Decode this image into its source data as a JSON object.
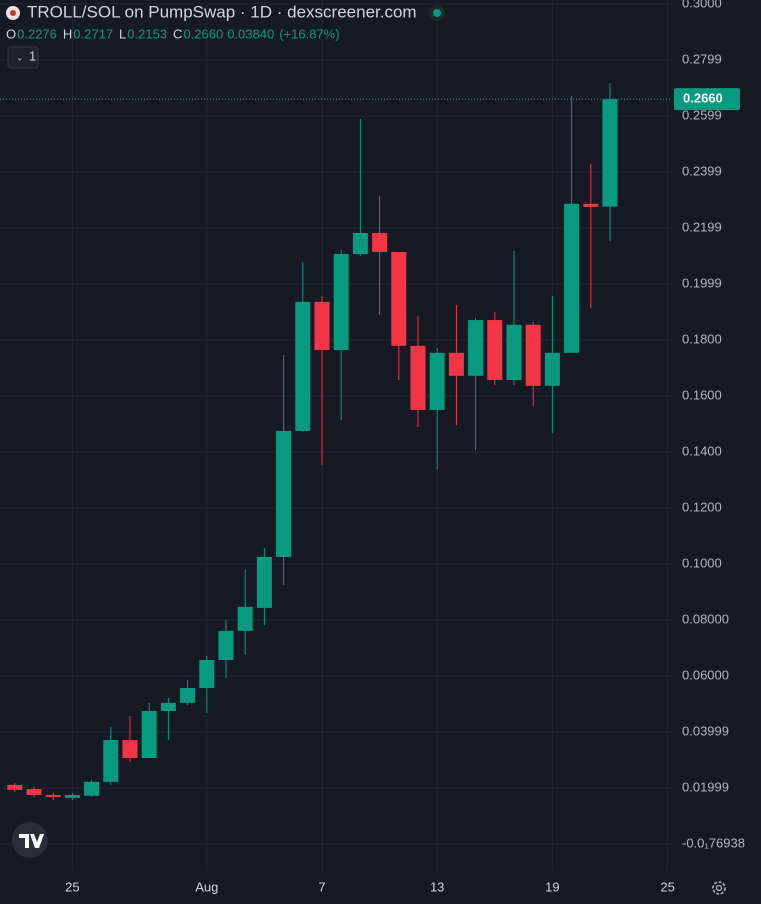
{
  "chart_data": {
    "type": "candlestick",
    "title": "TROLL/SOL on PumpSwap · 1D · dexscreener.com",
    "ohlc_legend": {
      "labels": [
        "O",
        "H",
        "L",
        "C"
      ],
      "values": [
        "0.2276",
        "0.2717",
        "0.2153",
        "0.2660"
      ],
      "change": "0.03840",
      "change_pct": "(+16.87%)"
    },
    "interval_button": "1",
    "categories": [
      null,
      null,
      null,
      "25",
      null,
      null,
      null,
      null,
      null,
      null,
      "Aug",
      null,
      null,
      null,
      null,
      null,
      "7",
      null,
      null,
      null,
      null,
      null,
      "13",
      null,
      null,
      null,
      null,
      null,
      "19",
      null,
      null,
      null,
      null,
      null,
      "25"
    ],
    "open": [
      0.0211,
      0.0196,
      0.0175,
      0.0164,
      0.0172,
      0.0222,
      0.0371,
      0.0307,
      0.0475,
      0.0504,
      0.0557,
      0.0657,
      0.0761,
      0.0843,
      0.1025,
      0.1475,
      0.1936,
      0.1764,
      0.2107,
      0.2182,
      0.2114,
      0.1779,
      0.155,
      0.1754,
      0.1672,
      0.1871,
      0.1657,
      0.1854,
      0.1636,
      0.1754,
      0.2286,
      0.2276,
      null,
      null,
      null
    ],
    "high": [
      0.0218,
      0.0204,
      0.0182,
      0.0182,
      0.0229,
      0.0418,
      0.0457,
      0.0504,
      0.0522,
      0.0586,
      0.0671,
      0.08,
      0.0979,
      0.1057,
      0.1746,
      0.2079,
      0.1957,
      0.2121,
      0.2589,
      0.2314,
      0.2114,
      0.1886,
      0.1771,
      0.1925,
      0.1879,
      0.19,
      0.2118,
      0.1864,
      0.1957,
      0.2672,
      0.2429,
      0.2717,
      null,
      null,
      null
    ],
    "low": [
      0.0186,
      0.0168,
      0.0157,
      0.0157,
      0.0168,
      0.0211,
      0.0293,
      0.0307,
      0.0371,
      0.0496,
      0.0468,
      0.0593,
      0.0675,
      0.0782,
      0.0925,
      0.1472,
      0.1354,
      0.1514,
      0.21,
      0.1889,
      0.1657,
      0.1489,
      0.1339,
      0.1496,
      0.1407,
      0.1639,
      0.1639,
      0.1564,
      0.1468,
      0.1754,
      0.1914,
      0.2153,
      null,
      null,
      null
    ],
    "close": [
      0.0193,
      0.0175,
      0.0168,
      0.0175,
      0.0222,
      0.0371,
      0.0307,
      0.0475,
      0.0504,
      0.0557,
      0.0657,
      0.0761,
      0.0847,
      0.1025,
      0.1475,
      0.1936,
      0.1764,
      0.2107,
      0.2182,
      0.2114,
      0.1779,
      0.155,
      0.1754,
      0.1672,
      0.1871,
      0.1657,
      0.1854,
      0.1636,
      0.1754,
      0.2286,
      0.2275,
      0.266,
      null,
      null,
      null
    ],
    "up_color": "#089981",
    "down_color": "#f23645",
    "ylim": [
      -0.0093,
      0.3014
    ],
    "yticks": [
      {
        "value": 0,
        "label": "-0.0₁76938"
      },
      0.01999,
      0.03999,
      {
        "value": 0.06,
        "label": "0.06000"
      },
      {
        "value": 0.08,
        "label": "0.08000"
      },
      {
        "value": 0.1,
        "label": "0.1000"
      },
      {
        "value": 0.12,
        "label": "0.1200"
      },
      {
        "value": 0.14,
        "label": "0.1400"
      },
      {
        "value": 0.16,
        "label": "0.1600"
      },
      {
        "value": 0.18,
        "label": "0.1800"
      },
      0.1999,
      0.2199,
      0.2399,
      0.2599,
      0.2799,
      {
        "value": 0.3,
        "label": "0.3000"
      }
    ],
    "last_price": {
      "value": 0.266,
      "label": "0.2660"
    },
    "grid": true
  }
}
